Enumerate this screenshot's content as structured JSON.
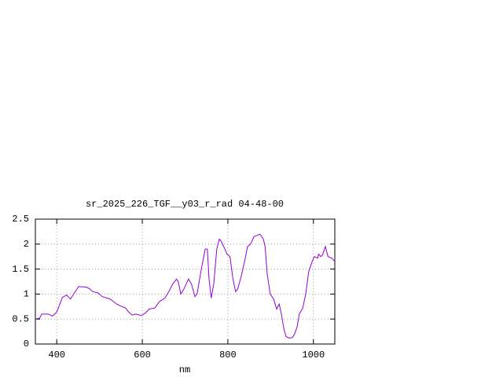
{
  "chart_data": {
    "type": "line",
    "title": "sr_2025_226_TGF__y03_r_rad 04-48-00",
    "x_label": "nm",
    "xlim": [
      350,
      1050
    ],
    "ylim": [
      0,
      2.5
    ],
    "xticks": [
      400,
      600,
      800,
      1000
    ],
    "yticks": [
      0,
      0.5,
      1,
      1.5,
      2,
      2.5
    ],
    "grid": true,
    "series": [
      {
        "color": "#9400d3",
        "x": [
          350,
          360,
          365,
          380,
          390,
          400,
          405,
          413,
          423,
          432,
          451,
          469,
          478,
          484,
          497,
          506,
          525,
          540,
          552,
          561,
          567,
          576,
          585,
          598,
          607,
          616,
          629,
          640,
          653,
          662,
          671,
          680,
          684,
          690,
          697,
          708,
          715,
          723,
          728,
          738,
          747,
          752,
          756,
          761,
          767,
          774,
          780,
          785,
          793,
          798,
          805,
          812,
          818,
          823,
          831,
          839,
          846,
          853,
          861,
          870,
          875,
          883,
          887,
          892,
          899,
          907,
          914,
          920,
          925,
          931,
          936,
          943,
          951,
          956,
          962,
          967,
          975,
          982,
          989,
          997,
          1002,
          1010,
          1012,
          1017,
          1021,
          1028,
          1034,
          1043,
          1050
        ],
        "values": [
          0.5,
          0.52,
          0.6,
          0.6,
          0.56,
          0.64,
          0.75,
          0.93,
          0.98,
          0.9,
          1.15,
          1.14,
          1.1,
          1.05,
          1.02,
          0.95,
          0.9,
          0.8,
          0.75,
          0.72,
          0.65,
          0.58,
          0.6,
          0.57,
          0.62,
          0.7,
          0.72,
          0.85,
          0.92,
          1.05,
          1.2,
          1.3,
          1.25,
          1.0,
          1.1,
          1.3,
          1.2,
          0.95,
          1.0,
          1.5,
          1.9,
          1.9,
          1.3,
          0.92,
          1.2,
          1.9,
          2.1,
          2.05,
          1.9,
          1.8,
          1.75,
          1.3,
          1.05,
          1.1,
          1.35,
          1.65,
          1.95,
          2.0,
          2.15,
          2.18,
          2.2,
          2.1,
          1.95,
          1.4,
          1.0,
          0.9,
          0.7,
          0.8,
          0.6,
          0.3,
          0.15,
          0.12,
          0.13,
          0.2,
          0.35,
          0.6,
          0.72,
          1.0,
          1.45,
          1.65,
          1.75,
          1.72,
          1.8,
          1.75,
          1.78,
          1.95,
          1.75,
          1.72,
          1.65
        ]
      }
    ]
  }
}
